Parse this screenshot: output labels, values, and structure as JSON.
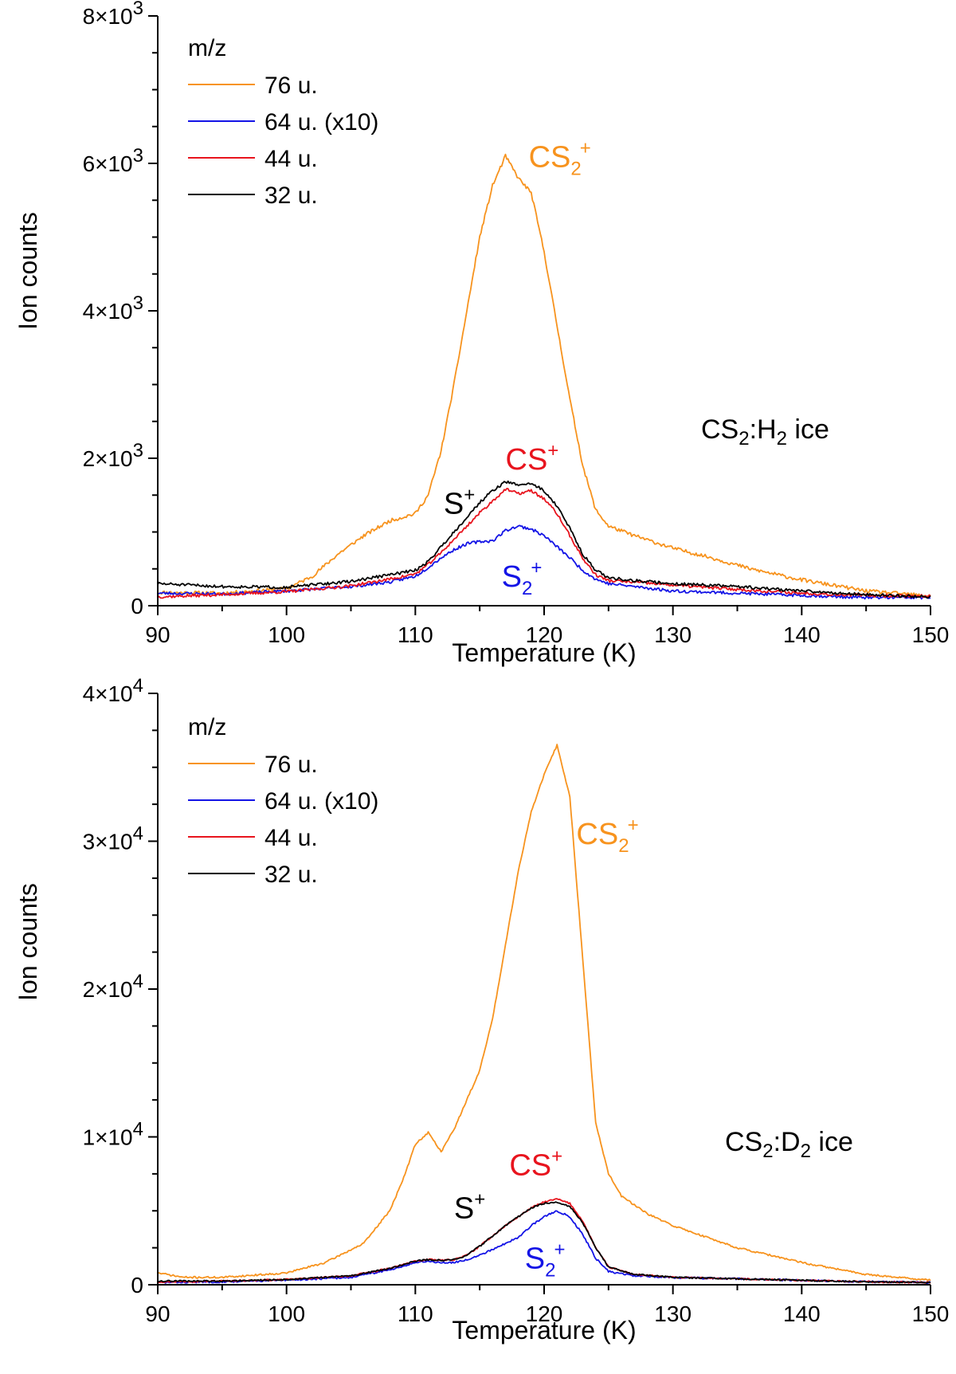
{
  "colors": {
    "m76": "#f7931e",
    "m64": "#1414e6",
    "m44": "#e8141e",
    "m32": "#000000",
    "axis": "#000000"
  },
  "chart_data": [
    {
      "type": "line",
      "xlabel": "Temperature (K)",
      "ylabel": "Ion counts",
      "xlim": [
        90,
        150
      ],
      "ylim": [
        0,
        8000
      ],
      "xticks": [
        90,
        100,
        110,
        120,
        130,
        140,
        150
      ],
      "xtick_labels": [
        "90",
        "100",
        "110",
        "120",
        "130",
        "140",
        "150"
      ],
      "yticks": [
        0,
        2000,
        4000,
        6000,
        8000
      ],
      "ytick_labels": [
        {
          "base": "0",
          "exp": ""
        },
        {
          "base": "2×10",
          "exp": "3"
        },
        {
          "base": "4×10",
          "exp": "3"
        },
        {
          "base": "6×10",
          "exp": "3"
        },
        {
          "base": "8×10",
          "exp": "3"
        }
      ],
      "legend": {
        "title": "m/z",
        "position": "top-left",
        "entries": [
          {
            "label": "76 u.",
            "color_key": "m76"
          },
          {
            "label": "64 u. (x10)",
            "color_key": "m64"
          },
          {
            "label": "44 u.",
            "color_key": "m44"
          },
          {
            "label": "32 u.",
            "color_key": "m32"
          }
        ]
      },
      "system_label": {
        "pre": "CS",
        "sub1": "2",
        "mid": ":H",
        "sub2": "2",
        "post": " ice"
      },
      "annotations": [
        {
          "base": "CS",
          "sub": "2",
          "sup": "+",
          "color_key": "m76",
          "x": 118.8,
          "y": 5950
        },
        {
          "base": "CS",
          "sub": "",
          "sup": "+",
          "color_key": "m44",
          "x": 117.0,
          "y": 1850
        },
        {
          "base": "S",
          "sub": "",
          "sup": "+",
          "color_key": "m32",
          "x": 112.2,
          "y": 1250
        },
        {
          "base": "S",
          "sub": "2",
          "sup": "+",
          "color_key": "m64",
          "x": 116.7,
          "y": 260
        }
      ],
      "series": [
        {
          "name": "76 u.",
          "color_key": "m76",
          "noise": 25,
          "seed": 11,
          "x": [
            90,
            95,
            100,
            102,
            104,
            106,
            108,
            110,
            111,
            112,
            113,
            114,
            115,
            116,
            117,
            118,
            119,
            120,
            121,
            122,
            123,
            124,
            125,
            127,
            130,
            133,
            136,
            140,
            145,
            150
          ],
          "y": [
            180,
            170,
            230,
            400,
            700,
            950,
            1150,
            1250,
            1500,
            2100,
            3000,
            4000,
            5000,
            5700,
            6100,
            5800,
            5600,
            4800,
            3800,
            2800,
            1900,
            1300,
            1080,
            950,
            780,
            650,
            500,
            350,
            200,
            130
          ]
        },
        {
          "name": "64 u. (x10)",
          "color_key": "m64",
          "noise": 20,
          "seed": 23,
          "x": [
            90,
            95,
            100,
            105,
            108,
            110,
            111,
            112,
            113,
            114,
            115,
            116,
            117,
            118,
            119,
            120,
            121,
            122,
            123,
            124,
            125,
            127,
            130,
            135,
            140,
            145,
            150
          ],
          "y": [
            170,
            160,
            200,
            260,
            320,
            400,
            520,
            650,
            760,
            840,
            870,
            880,
            1020,
            1080,
            1040,
            950,
            800,
            650,
            480,
            360,
            300,
            260,
            200,
            170,
            140,
            110,
            110
          ]
        },
        {
          "name": "44 u.",
          "color_key": "m44",
          "noise": 20,
          "seed": 37,
          "x": [
            90,
            95,
            100,
            105,
            108,
            110,
            111,
            112,
            113,
            114,
            115,
            116,
            117,
            118,
            119,
            120,
            121,
            122,
            123,
            124,
            125,
            127,
            130,
            135,
            140,
            145,
            150
          ],
          "y": [
            120,
            150,
            190,
            270,
            360,
            430,
            560,
            720,
            900,
            1080,
            1260,
            1420,
            1580,
            1520,
            1560,
            1450,
            1250,
            950,
            640,
            420,
            340,
            320,
            280,
            220,
            170,
            140,
            130
          ]
        },
        {
          "name": "32 u.",
          "color_key": "m32",
          "noise": 20,
          "seed": 51,
          "x": [
            90,
            95,
            100,
            105,
            108,
            110,
            111,
            112,
            113,
            114,
            115,
            116,
            117,
            118,
            119,
            120,
            121,
            122,
            123,
            124,
            125,
            127,
            130,
            135,
            140,
            145,
            150
          ],
          "y": [
            300,
            260,
            250,
            330,
            420,
            480,
            600,
            800,
            1000,
            1200,
            1400,
            1560,
            1680,
            1640,
            1660,
            1560,
            1350,
            1050,
            700,
            480,
            380,
            340,
            300,
            260,
            200,
            150,
            120
          ]
        }
      ]
    },
    {
      "type": "line",
      "xlabel": "Temperature (K)",
      "ylabel": "Ion counts",
      "xlim": [
        90,
        150
      ],
      "ylim": [
        0,
        40000
      ],
      "xticks": [
        90,
        100,
        110,
        120,
        130,
        140,
        150
      ],
      "xtick_labels": [
        "90",
        "100",
        "110",
        "120",
        "130",
        "140",
        "150"
      ],
      "yticks": [
        0,
        10000,
        20000,
        30000,
        40000
      ],
      "ytick_labels": [
        {
          "base": "0",
          "exp": ""
        },
        {
          "base": "1×10",
          "exp": "4"
        },
        {
          "base": "2×10",
          "exp": "4"
        },
        {
          "base": "3×10",
          "exp": "4"
        },
        {
          "base": "4×10",
          "exp": "4"
        }
      ],
      "legend": {
        "title": "m/z",
        "position": "top-left",
        "entries": [
          {
            "label": "76 u.",
            "color_key": "m76"
          },
          {
            "label": "64 u. (x10)",
            "color_key": "m64"
          },
          {
            "label": "44 u.",
            "color_key": "m44"
          },
          {
            "label": "32 u.",
            "color_key": "m32"
          }
        ]
      },
      "system_label": {
        "pre": "CS",
        "sub1": "2",
        "mid": ":D",
        "sub2": "2",
        "post": " ice"
      },
      "annotations": [
        {
          "base": "CS",
          "sub": "2",
          "sup": "+",
          "color_key": "m76",
          "x": 122.5,
          "y": 29800
        },
        {
          "base": "CS",
          "sub": "",
          "sup": "+",
          "color_key": "m44",
          "x": 117.3,
          "y": 7400
        },
        {
          "base": "S",
          "sub": "",
          "sup": "+",
          "color_key": "m32",
          "x": 113.0,
          "y": 4500
        },
        {
          "base": "S",
          "sub": "2",
          "sup": "+",
          "color_key": "m64",
          "x": 118.5,
          "y": 1100
        }
      ],
      "series": [
        {
          "name": "76 u.",
          "color_key": "m76",
          "noise": 60,
          "seed": 71,
          "x": [
            90,
            92,
            95,
            100,
            103,
            106,
            108,
            109,
            110,
            111,
            112,
            113,
            114,
            115,
            116,
            117,
            118,
            119,
            120,
            121,
            122,
            123,
            124,
            125,
            126,
            128,
            130,
            135,
            140,
            145,
            150
          ],
          "y": [
            800,
            500,
            500,
            800,
            1500,
            2800,
            5000,
            7000,
            9500,
            10300,
            9000,
            10500,
            12500,
            14500,
            18000,
            23000,
            28000,
            32000,
            34500,
            36500,
            33000,
            22000,
            11000,
            7500,
            6000,
            4800,
            4000,
            2500,
            1500,
            700,
            300
          ]
        },
        {
          "name": "64 u. (x10)",
          "color_key": "m64",
          "noise": 60,
          "seed": 83,
          "x": [
            90,
            95,
            100,
            105,
            108,
            110,
            111,
            112,
            113,
            114,
            115,
            116,
            117,
            118,
            119,
            120,
            121,
            122,
            123,
            124,
            125,
            127,
            130,
            135,
            140,
            145,
            150
          ],
          "y": [
            150,
            200,
            300,
            500,
            1000,
            1500,
            1600,
            1500,
            1500,
            1700,
            2000,
            2400,
            2800,
            3200,
            4000,
            4600,
            5000,
            4600,
            3400,
            1800,
            900,
            600,
            500,
            400,
            300,
            200,
            150
          ]
        },
        {
          "name": "44 u.",
          "color_key": "m44",
          "noise": 50,
          "seed": 97,
          "x": [
            90,
            95,
            100,
            105,
            108,
            110,
            111,
            112,
            113,
            114,
            115,
            116,
            117,
            118,
            119,
            120,
            121,
            122,
            123,
            124,
            125,
            127,
            130,
            135,
            140,
            145,
            150
          ],
          "y": [
            200,
            250,
            350,
            600,
            1100,
            1600,
            1700,
            1650,
            1700,
            2000,
            2600,
            3300,
            4000,
            4600,
            5200,
            5600,
            5800,
            5500,
            4300,
            2500,
            1200,
            700,
            500,
            400,
            300,
            200,
            150
          ]
        },
        {
          "name": "32 u.",
          "color_key": "m32",
          "noise": 50,
          "seed": 109,
          "x": [
            90,
            95,
            100,
            105,
            108,
            110,
            111,
            112,
            113,
            114,
            115,
            116,
            117,
            118,
            119,
            120,
            121,
            122,
            123,
            124,
            125,
            127,
            130,
            135,
            140,
            145,
            150
          ],
          "y": [
            250,
            250,
            350,
            600,
            1100,
            1600,
            1700,
            1650,
            1700,
            2000,
            2600,
            3300,
            4000,
            4600,
            5200,
            5500,
            5600,
            5300,
            4200,
            2500,
            1200,
            700,
            500,
            400,
            300,
            200,
            150
          ]
        }
      ]
    }
  ]
}
